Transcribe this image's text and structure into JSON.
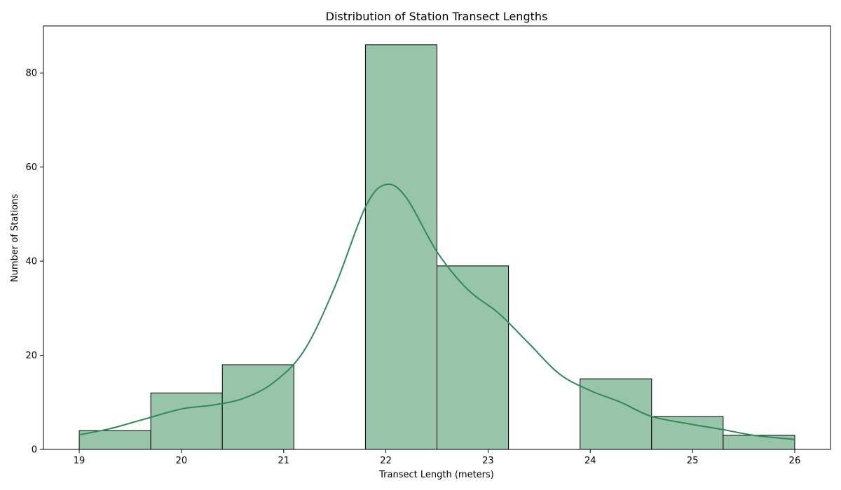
{
  "colors": {
    "bar_fill": "#98c4a9",
    "kde_line": "#2e8b57"
  },
  "chart_data": {
    "type": "histogram",
    "title": "Distribution of Station Transect Lengths",
    "xlabel": "Transect Length (meters)",
    "ylabel": "Number of Stations",
    "xlim": [
      18.65,
      26.35
    ],
    "ylim": [
      0,
      90
    ],
    "xticks": [
      19,
      20,
      21,
      22,
      23,
      24,
      25,
      26
    ],
    "yticks": [
      0,
      20,
      40,
      60,
      80
    ],
    "grid": false,
    "bins": [
      {
        "x0": 19.0,
        "x1": 19.7,
        "count": 4
      },
      {
        "x0": 19.7,
        "x1": 20.4,
        "count": 12
      },
      {
        "x0": 20.4,
        "x1": 21.1,
        "count": 18
      },
      {
        "x0": 21.1,
        "x1": 21.8,
        "count": 0
      },
      {
        "x0": 21.8,
        "x1": 22.5,
        "count": 86
      },
      {
        "x0": 22.5,
        "x1": 23.2,
        "count": 39
      },
      {
        "x0": 23.2,
        "x1": 23.9,
        "count": 0
      },
      {
        "x0": 23.9,
        "x1": 24.6,
        "count": 15
      },
      {
        "x0": 24.6,
        "x1": 25.3,
        "count": 7
      },
      {
        "x0": 25.3,
        "x1": 26.0,
        "count": 3
      }
    ],
    "kde": {
      "x": [
        19.0,
        19.3,
        19.6,
        20.0,
        20.3,
        20.6,
        20.9,
        21.2,
        21.5,
        21.8,
        22.0,
        22.2,
        22.5,
        22.8,
        23.1,
        23.4,
        23.7,
        24.0,
        24.3,
        24.6,
        25.0,
        25.3,
        25.6,
        26.0
      ],
      "y": [
        3.1,
        4.4,
        6.2,
        8.6,
        9.4,
        10.8,
        14.2,
        21.0,
        34.5,
        51.5,
        56.3,
        53.5,
        42.0,
        34.0,
        29.0,
        22.5,
        16.0,
        12.5,
        10.0,
        7.0,
        5.3,
        4.2,
        3.0,
        2.1
      ]
    }
  }
}
